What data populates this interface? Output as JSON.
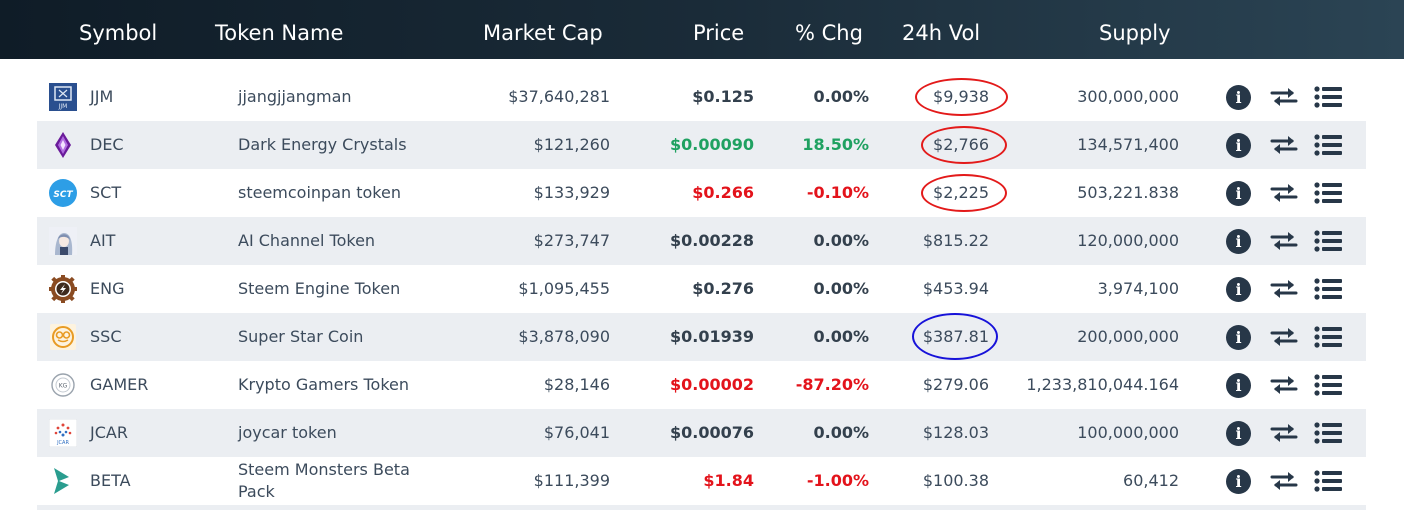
{
  "header": {
    "symbol": "Symbol",
    "token_name": "Token Name",
    "market_cap": "Market Cap",
    "price": "Price",
    "chg": "% Chg",
    "vol": "24h Vol",
    "supply": "Supply"
  },
  "colors": {
    "header_bg": "#1a2b38",
    "positive": "#1fa161",
    "negative": "#e3131b",
    "row_alt": "#ebeef2",
    "annotation_red": "#e31a1a",
    "annotation_blue": "#1712d9"
  },
  "rows": [
    {
      "symbol": "JJM",
      "name": "jjangjjangman",
      "market_cap": "$37,640,281",
      "price": "$0.125",
      "chg": "0.00%",
      "vol": "$9,938",
      "supply": "300,000,000",
      "trend": "flat",
      "logo": "jjm-logo-icon",
      "annotation": "red"
    },
    {
      "symbol": "DEC",
      "name": "Dark Energy Crystals",
      "market_cap": "$121,260",
      "price": "$0.00090",
      "chg": "18.50%",
      "vol": "$2,766",
      "supply": "134,571,400",
      "trend": "up",
      "logo": "dec-crystal-icon",
      "annotation": "red"
    },
    {
      "symbol": "SCT",
      "name": "steemcoinpan token",
      "market_cap": "$133,929",
      "price": "$0.266",
      "chg": "-0.10%",
      "vol": "$2,225",
      "supply": "503,221.838",
      "trend": "down",
      "logo": "sct-logo-icon",
      "annotation": "red"
    },
    {
      "symbol": "AIT",
      "name": "AI Channel Token",
      "market_cap": "$273,747",
      "price": "$0.00228",
      "chg": "0.00%",
      "vol": "$815.22",
      "supply": "120,000,000",
      "trend": "flat",
      "logo": "ait-avatar-icon",
      "annotation": ""
    },
    {
      "symbol": "ENG",
      "name": "Steem Engine Token",
      "market_cap": "$1,095,455",
      "price": "$0.276",
      "chg": "0.00%",
      "vol": "$453.94",
      "supply": "3,974,100",
      "trend": "flat",
      "logo": "eng-gear-icon",
      "annotation": ""
    },
    {
      "symbol": "SSC",
      "name": "Super Star Coin",
      "market_cap": "$3,878,090",
      "price": "$0.01939",
      "chg": "0.00%",
      "vol": "$387.81",
      "supply": "200,000,000",
      "trend": "flat",
      "logo": "ssc-coin-icon",
      "annotation": "blue"
    },
    {
      "symbol": "GAMER",
      "name": "Krypto Gamers Token",
      "market_cap": "$28,146",
      "price": "$0.00002",
      "chg": "-87.20%",
      "vol": "$279.06",
      "supply": "1,233,810,044.164",
      "trend": "down",
      "logo": "gamer-badge-icon",
      "annotation": ""
    },
    {
      "symbol": "JCAR",
      "name": "joycar token",
      "market_cap": "$76,041",
      "price": "$0.00076",
      "chg": "0.00%",
      "vol": "$128.03",
      "supply": "100,000,000",
      "trend": "flat",
      "logo": "jcar-logo-icon",
      "annotation": ""
    },
    {
      "symbol": "BETA",
      "name": "Steem Monsters Beta Pack",
      "market_cap": "$111,399",
      "price": "$1.84",
      "chg": "-1.00%",
      "vol": "$100.38",
      "supply": "60,412",
      "trend": "down",
      "logo": "beta-logo-icon",
      "annotation": ""
    }
  ],
  "actions": {
    "info_icon": "info-icon",
    "swap_icon": "swap-arrows-icon",
    "list_icon": "list-icon"
  }
}
